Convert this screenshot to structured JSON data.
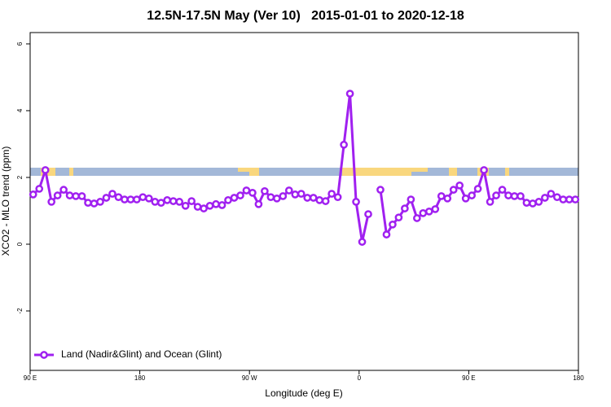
{
  "chart_data": {
    "type": "line",
    "title": "12.5N-17.5N May (Ver 10)   2015-01-01 to 2020-12-18",
    "xlabel": "Longitude (deg E)",
    "ylabel": "XCO2 - MLO trend (ppm)",
    "x": [
      92.5,
      97.5,
      102.5,
      107.5,
      112.5,
      117.5,
      122.5,
      127.5,
      132.5,
      137.5,
      142.5,
      147.5,
      152.5,
      157.5,
      162.5,
      167.5,
      172.5,
      177.5,
      182.5,
      187.5,
      192.5,
      197.5,
      202.5,
      207.5,
      212.5,
      217.5,
      222.5,
      227.5,
      232.5,
      237.5,
      242.5,
      247.5,
      252.5,
      257.5,
      262.5,
      267.5,
      272.5,
      277.5,
      282.5,
      287.5,
      292.5,
      297.5,
      302.5,
      307.5,
      312.5,
      317.5,
      322.5,
      327.5,
      332.5,
      337.5,
      342.5,
      347.5,
      352.5,
      357.5,
      362.5,
      367.5,
      372.5,
      377.5,
      382.5,
      387.5,
      392.5,
      397.5,
      402.5,
      407.5,
      412.5,
      417.5,
      422.5,
      427.5,
      432.5,
      437.5,
      442.5,
      447.5,
      452.5,
      457.5,
      462.5,
      467.5,
      472.5,
      477.5,
      482.5,
      487.5,
      492.5,
      497.5,
      502.5,
      507.5,
      512.5,
      517.5,
      522.5,
      527.5,
      532.5,
      537.5
    ],
    "series": [
      {
        "name": "Land (Nadir&Glint) and Ocean (Glint)",
        "color": "#a020f0",
        "values": [
          1.49,
          1.66,
          2.22,
          1.27,
          1.46,
          1.63,
          1.46,
          1.44,
          1.44,
          1.24,
          1.22,
          1.27,
          1.39,
          1.51,
          1.41,
          1.34,
          1.34,
          1.34,
          1.41,
          1.37,
          1.27,
          1.24,
          1.32,
          1.29,
          1.27,
          1.15,
          1.29,
          1.12,
          1.07,
          1.15,
          1.2,
          1.17,
          1.32,
          1.39,
          1.46,
          1.61,
          1.54,
          1.2,
          1.59,
          1.41,
          1.37,
          1.44,
          1.61,
          1.49,
          1.51,
          1.39,
          1.39,
          1.32,
          1.29,
          1.51,
          1.41,
          2.98,
          4.51,
          1.27,
          0.07,
          0.9,
          null,
          1.63,
          0.29,
          0.59,
          0.8,
          1.07,
          1.34,
          0.78,
          0.93,
          0.98,
          1.05,
          1.44,
          1.37,
          1.63,
          1.76,
          1.37,
          1.46,
          1.66,
          2.22,
          1.27,
          1.46,
          1.63,
          1.46,
          1.44,
          1.44,
          1.24,
          1.22,
          1.27,
          1.39,
          1.51,
          1.41,
          1.34,
          1.34,
          1.34
        ]
      }
    ],
    "xlim": [
      90,
      540
    ],
    "xticks": [
      {
        "value": 90,
        "label": "90 E"
      },
      180,
      {
        "value": 270,
        "label": "90 W"
      },
      {
        "value": 360,
        "label": "0"
      },
      {
        "value": 450,
        "label": "90 E"
      },
      {
        "value": 540,
        "label": "180"
      }
    ],
    "ylim": [
      -3.78,
      6.34
    ],
    "yticks": [
      -2,
      0,
      2,
      4,
      6
    ],
    "legend": "bottomleft"
  }
}
